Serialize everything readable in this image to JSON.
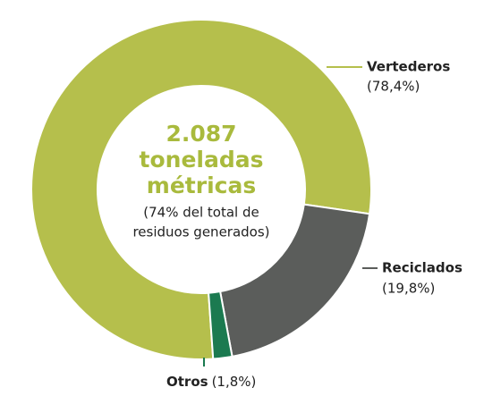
{
  "chart_data": {
    "type": "donut",
    "center_title": [
      "2.087",
      "toneladas",
      "métricas"
    ],
    "center_note": [
      "(74% del total de",
      "residuos generados)"
    ],
    "categories": [
      "Vertederos",
      "Reciclados",
      "Otros"
    ],
    "values": [
      78.4,
      19.8,
      1.8
    ],
    "value_labels": [
      "(78,4%)",
      "(19,8%)",
      "(1,8%)"
    ],
    "colors": [
      "#b5bf4c",
      "#5b5d5b",
      "#1b7a50"
    ]
  }
}
